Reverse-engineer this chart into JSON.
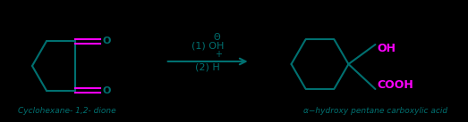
{
  "bg_color": "#000000",
  "teal": "#007070",
  "magenta": "#FF00FF",
  "fig_width": 5.23,
  "fig_height": 1.37,
  "dpi": 100,
  "label_left": "Cyclohexane- 1,2- dione",
  "label_right": "α−hydroxy pentane carboxylic acid",
  "reaction_step1": "(1) OH",
  "reaction_step2": "(2) H",
  "cooh_label": "COOH",
  "oh_label": "OH",
  "lw": 1.5
}
